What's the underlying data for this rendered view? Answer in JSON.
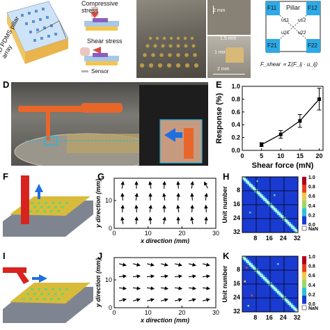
{
  "top": {
    "array_label": "3D PDMS pillar array",
    "compressive_label": "Compressive stress",
    "shear_label": "Shear stress",
    "sensor_label": "Sensor",
    "scale_2mm_a": "2 mm",
    "scale_1_5mm": "1.5 mm",
    "scale_1mm": "1 mm",
    "scale_2mm_b": "2 mm",
    "pillar_label": "Pillar",
    "f11": "F11",
    "f12": "F12",
    "f21": "F21",
    "f22": "F22",
    "u11": "u11",
    "u12": "u12",
    "u21": "u21",
    "u22": "u22",
    "formula": "F_shear ∝ Σ(F_ij · u_ij)"
  },
  "labels": {
    "d": "D",
    "e": "E",
    "f": "F",
    "g": "G",
    "h": "H",
    "i": "I",
    "j": "J",
    "k": "K"
  },
  "chart_data": [
    {
      "id": "E",
      "type": "line",
      "xlabel": "Shear force (mN)",
      "ylabel": "Response (%)",
      "x": [
        5,
        10,
        15,
        20
      ],
      "y": [
        0.09,
        0.25,
        0.46,
        0.8
      ],
      "yerr": [
        0.03,
        0.06,
        0.1,
        0.17
      ],
      "xlim": [
        0,
        21
      ],
      "ylim": [
        0,
        1.0
      ],
      "xticks": [
        "0",
        "5",
        "10",
        "15",
        "20"
      ],
      "yticks": [
        "0.0",
        "0.2",
        "0.4",
        "0.6",
        "0.8",
        "1.0"
      ]
    },
    {
      "id": "G",
      "type": "scatter",
      "xlabel": "x direction (mm)",
      "ylabel": "y direction (mm)",
      "xlim": [
        0,
        30
      ],
      "ylim": [
        0,
        18
      ],
      "xticks": [
        "0",
        "10",
        "20",
        "30"
      ],
      "yticks": [
        "0",
        "10"
      ],
      "note": "quiver field, arrows pointing mostly up"
    },
    {
      "id": "H",
      "type": "heatmap",
      "ylabel": "Unit number",
      "xticks": [
        "8",
        "16",
        "24",
        "32"
      ],
      "yticks": [
        "8",
        "16",
        "24",
        "32"
      ],
      "colorbar_ticks": [
        "1.0",
        "0.8",
        "0.6",
        "0.4",
        "0.2",
        "0.0",
        "NaN"
      ]
    },
    {
      "id": "J",
      "type": "scatter",
      "xlabel": "x direction (mm)",
      "ylabel": "y direction (mm)",
      "xlim": [
        0,
        30
      ],
      "ylim": [
        0,
        18
      ],
      "xticks": [
        "0",
        "10",
        "20",
        "30"
      ],
      "yticks": [
        "0",
        "10"
      ],
      "note": "quiver field, arrows pointing mostly right"
    },
    {
      "id": "K",
      "type": "heatmap",
      "ylabel": "Unit number",
      "xticks": [
        "8",
        "16",
        "24",
        "32"
      ],
      "yticks": [
        "8",
        "16",
        "24",
        "32"
      ],
      "colorbar_ticks": [
        "1.0",
        "0.8",
        "0.6",
        "0.4",
        "0.2",
        "0.0",
        "NaN"
      ]
    }
  ],
  "colors": {
    "accent_blue": "#1f8fe0",
    "orange": "#e8662a",
    "cyan": "#19b7e8",
    "heat_bg": "#1a3bd1"
  }
}
